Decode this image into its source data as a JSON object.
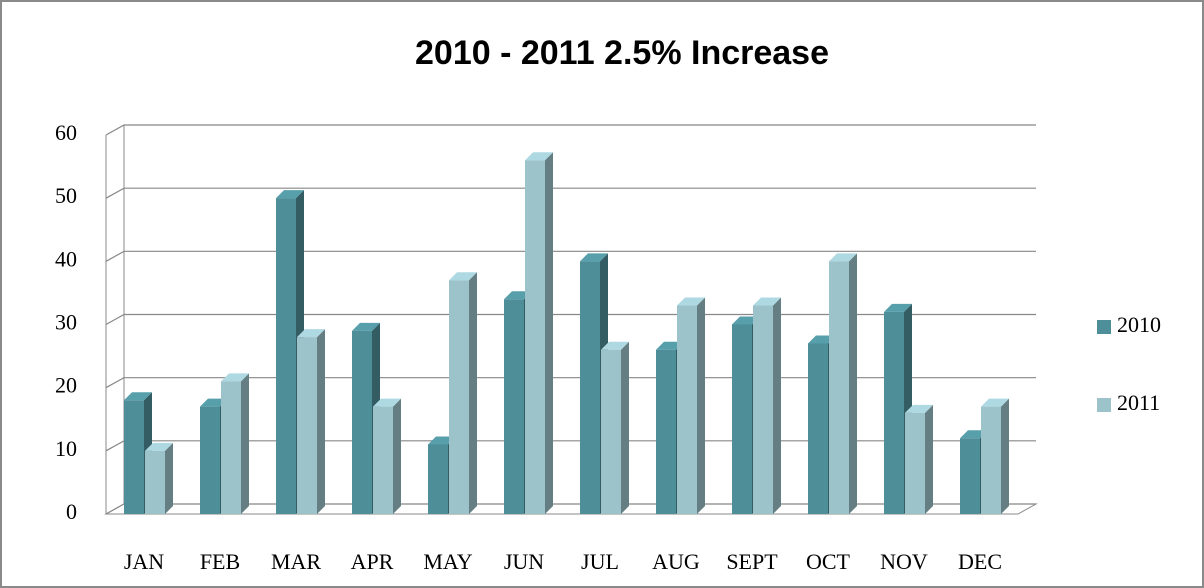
{
  "chart_data": {
    "type": "bar3d",
    "title": "2010 - 2011  2.5% Increase",
    "categories": [
      "JAN",
      "FEB",
      "MAR",
      "APR",
      "MAY",
      "JUN",
      "JUL",
      "AUG",
      "SEPT",
      "OCT",
      "NOV",
      "DEC"
    ],
    "series": [
      {
        "name": "2010",
        "color": "#4e8e99",
        "values": [
          18,
          17,
          50,
          29,
          11,
          34,
          40,
          26,
          30,
          27,
          32,
          12
        ]
      },
      {
        "name": "2011",
        "color": "#9cc2ca",
        "values": [
          10,
          21,
          28,
          17,
          37,
          56,
          26,
          33,
          33,
          40,
          16,
          17
        ]
      }
    ],
    "ylim": [
      0,
      60
    ],
    "yticks": [
      0,
      10,
      20,
      30,
      40,
      50,
      60
    ],
    "grid": true,
    "legend": "right"
  }
}
